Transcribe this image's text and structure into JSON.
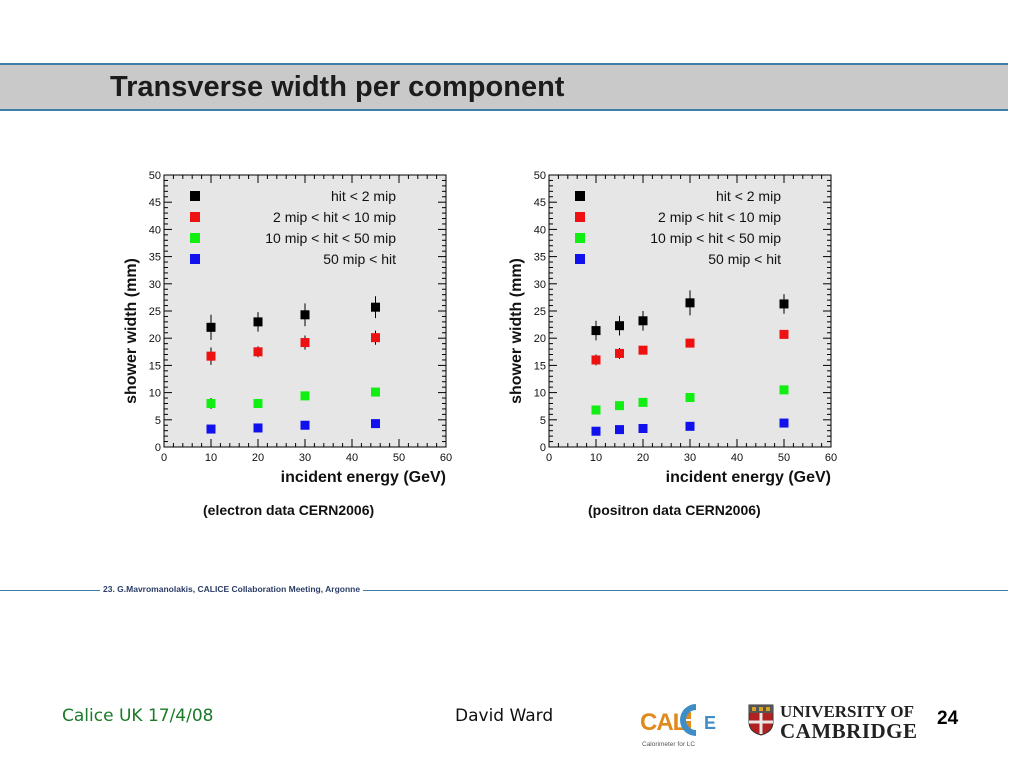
{
  "slide": {
    "title": "Transverse width per component",
    "credit": "23. G.Mavromanolakis, CALICE Collaboration Meeting, Argonne",
    "footer_left": "Calice UK 17/4/08",
    "footer_center": "David Ward",
    "page_number": "24",
    "calice_logo_text": "CALICE",
    "calice_logo_subtext": "Calorimeter for LC",
    "university_line1": "UNIVERSITY OF",
    "university_line2": "CAMBRIDGE"
  },
  "chart_data": [
    {
      "type": "scatter",
      "caption": "(electron data CERN2006)",
      "xlabel": "incident energy (GeV)",
      "ylabel": "shower width (mm)",
      "xlim": [
        0,
        60
      ],
      "ylim": [
        0,
        50
      ],
      "xticks": [
        0,
        10,
        20,
        30,
        40,
        50,
        60
      ],
      "yticks": [
        0,
        5,
        10,
        15,
        20,
        25,
        30,
        35,
        40,
        45,
        50
      ],
      "grid": false,
      "legend_position": "top-left",
      "series": [
        {
          "name": "hit <  2 mip",
          "color": "#000000",
          "x": [
            10,
            20,
            30,
            45
          ],
          "y": [
            22,
            23,
            24.3,
            25.7
          ],
          "err": [
            2.3,
            1.8,
            2.1,
            2.0
          ]
        },
        {
          "name": "2 mip < hit < 10 mip",
          "color": "#ee1111",
          "x": [
            10,
            20,
            30,
            45
          ],
          "y": [
            16.7,
            17.5,
            19.2,
            20.1
          ],
          "err": [
            1.6,
            1.0,
            1.3,
            1.3
          ]
        },
        {
          "name": "10 mip < hit < 50 mip",
          "color": "#11ee11",
          "x": [
            10,
            20,
            30,
            45
          ],
          "y": [
            8.0,
            8.0,
            9.4,
            10.1
          ],
          "err": [
            1.0,
            0.3,
            0.3,
            0.3
          ]
        },
        {
          "name": "50 mip < hit",
          "color": "#1111ee",
          "x": [
            10,
            20,
            30,
            45
          ],
          "y": [
            3.3,
            3.5,
            4.0,
            4.3
          ],
          "err": [
            0.3,
            0.3,
            0.3,
            0.3
          ]
        }
      ]
    },
    {
      "type": "scatter",
      "caption": "(positron data CERN2006)",
      "xlabel": "incident energy (GeV)",
      "ylabel": "shower width (mm)",
      "xlim": [
        0,
        60
      ],
      "ylim": [
        0,
        50
      ],
      "xticks": [
        0,
        10,
        20,
        30,
        40,
        50,
        60
      ],
      "yticks": [
        0,
        5,
        10,
        15,
        20,
        25,
        30,
        35,
        40,
        45,
        50
      ],
      "grid": false,
      "legend_position": "top-left",
      "series": [
        {
          "name": "hit <  2 mip",
          "color": "#000000",
          "x": [
            10,
            15,
            20,
            30,
            50
          ],
          "y": [
            21.4,
            22.3,
            23.2,
            26.5,
            26.3
          ],
          "err": [
            1.8,
            1.8,
            1.8,
            2.3,
            1.8
          ]
        },
        {
          "name": "2 mip < hit < 10 mip",
          "color": "#ee1111",
          "x": [
            10,
            15,
            20,
            30,
            50
          ],
          "y": [
            16.0,
            17.2,
            17.8,
            19.1,
            20.7
          ],
          "err": [
            1.0,
            1.0,
            0.6,
            0.3,
            0.3
          ]
        },
        {
          "name": "10 mip < hit < 50 mip",
          "color": "#11ee11",
          "x": [
            10,
            15,
            20,
            30,
            50
          ],
          "y": [
            6.8,
            7.6,
            8.2,
            9.1,
            10.5
          ],
          "err": [
            0.3,
            0.3,
            0.3,
            0.3,
            0.3
          ]
        },
        {
          "name": "50 mip < hit",
          "color": "#1111ee",
          "x": [
            10,
            15,
            20,
            30,
            50
          ],
          "y": [
            2.9,
            3.2,
            3.4,
            3.8,
            4.4
          ],
          "err": [
            0.3,
            0.3,
            0.3,
            0.3,
            0.3
          ]
        }
      ]
    }
  ]
}
